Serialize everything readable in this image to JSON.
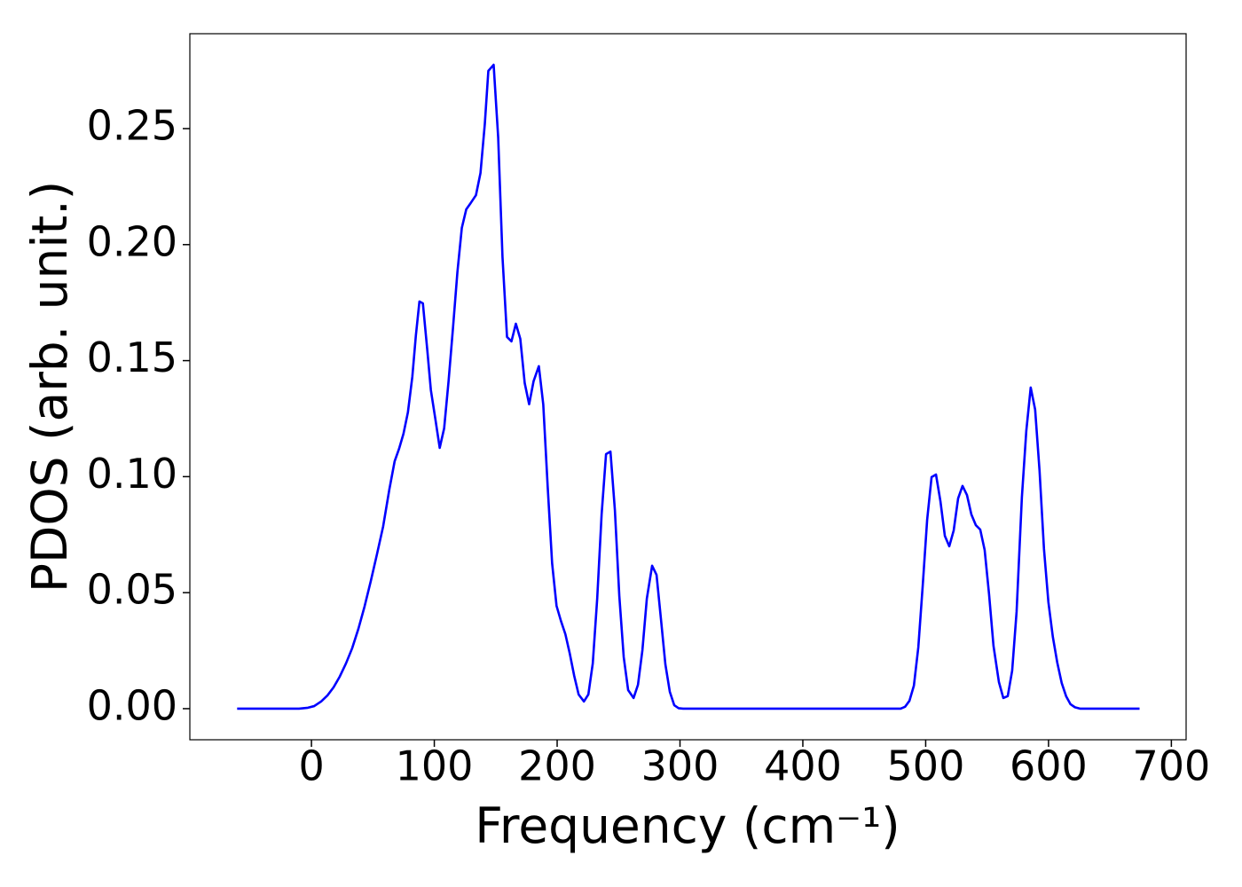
{
  "chart_data": {
    "type": "line",
    "xlabel": "Frequency (cm⁻¹)",
    "ylabel": "PDOS (arb. unit.)",
    "xlim": [
      -99,
      712
    ],
    "ylim": [
      -0.0134,
      0.2909
    ],
    "xticks": [
      0,
      100,
      200,
      300,
      400,
      500,
      600,
      700
    ],
    "yticks": [
      {
        "value": 0,
        "label": "0.00"
      },
      {
        "value": 0.05,
        "label": "0.05"
      },
      {
        "value": 0.1,
        "label": "0.10"
      },
      {
        "value": 0.15,
        "label": "0.15"
      },
      {
        "value": 0.2,
        "label": "0.20"
      },
      {
        "value": 0.25,
        "label": "0.25"
      }
    ],
    "grid": false,
    "x": [
      -60.5,
      -10.1,
      -6.5,
      -2.9,
      2.2,
      7.9,
      13.0,
      18.0,
      23.0,
      28.1,
      33.1,
      38.2,
      43.2,
      48.3,
      53.3,
      58.3,
      63.4,
      67.7,
      71.3,
      74.9,
      78.5,
      82.1,
      85.0,
      87.9,
      90.7,
      94.3,
      97.2,
      100.8,
      104.4,
      108.0,
      111.6,
      115.2,
      118.8,
      122.4,
      126.0,
      129.6,
      133.9,
      137.6,
      141.1,
      144.0,
      148.3,
      152.0,
      155.5,
      159.2,
      162.8,
      166.4,
      170.0,
      173.6,
      177.2,
      180.8,
      185.1,
      188.7,
      192.3,
      195.9,
      199.5,
      203.1,
      206.7,
      210.3,
      213.9,
      217.5,
      221.8,
      225.4,
      229.0,
      232.6,
      236.2,
      239.8,
      243.4,
      247.0,
      250.6,
      254.2,
      257.8,
      262.2,
      265.8,
      269.4,
      273.0,
      277.3,
      280.9,
      284.5,
      288.1,
      291.7,
      295.3,
      298.9,
      302.5,
      479.6,
      483.2,
      486.8,
      490.4,
      494.0,
      497.6,
      501.2,
      504.8,
      508.4,
      512.0,
      515.6,
      519.2,
      522.8,
      526.4,
      530.0,
      533.6,
      537.2,
      540.8,
      544.4,
      548.0,
      551.6,
      555.2,
      559.6,
      563.2,
      566.8,
      570.4,
      574.0,
      578.3,
      581.9,
      585.5,
      589.1,
      592.7,
      596.3,
      599.9,
      603.5,
      607.1,
      610.7,
      614.3,
      617.9,
      621.5,
      625.9,
      674.1
    ],
    "series": [
      {
        "color": "#0000ff",
        "values": [
          0,
          0,
          0.0002,
          0.0004,
          0.0011,
          0.0031,
          0.0057,
          0.0092,
          0.0138,
          0.0195,
          0.026,
          0.0344,
          0.044,
          0.055,
          0.0665,
          0.0784,
          0.0945,
          0.1066,
          0.112,
          0.1185,
          0.1277,
          0.143,
          0.1609,
          0.1755,
          0.1747,
          0.1545,
          0.1373,
          0.125,
          0.1124,
          0.1208,
          0.1411,
          0.164,
          0.1881,
          0.2072,
          0.2152,
          0.2179,
          0.2213,
          0.2309,
          0.2519,
          0.2749,
          0.2775,
          0.2462,
          0.1947,
          0.1602,
          0.1583,
          0.1659,
          0.1594,
          0.1403,
          0.1312,
          0.1411,
          0.1476,
          0.1311,
          0.0956,
          0.0627,
          0.0443,
          0.0378,
          0.0321,
          0.0237,
          0.0141,
          0.0061,
          0.0031,
          0.0061,
          0.0195,
          0.0474,
          0.0837,
          0.1097,
          0.1108,
          0.0856,
          0.0486,
          0.0222,
          0.008,
          0.0046,
          0.0103,
          0.0252,
          0.0474,
          0.0616,
          0.0577,
          0.0386,
          0.0191,
          0.0073,
          0.0015,
          0.0002,
          0,
          0,
          0.0008,
          0.0034,
          0.0099,
          0.0264,
          0.0531,
          0.0814,
          0.0998,
          0.1009,
          0.0894,
          0.0745,
          0.07,
          0.0768,
          0.0906,
          0.096,
          0.0921,
          0.0837,
          0.0791,
          0.0772,
          0.0684,
          0.0493,
          0.0271,
          0.0115,
          0.0046,
          0.0054,
          0.0164,
          0.0417,
          0.091,
          0.1197,
          0.1384,
          0.1289,
          0.1025,
          0.0688,
          0.0459,
          0.031,
          0.0199,
          0.0111,
          0.0054,
          0.0019,
          0.0006,
          0,
          0
        ]
      }
    ]
  }
}
